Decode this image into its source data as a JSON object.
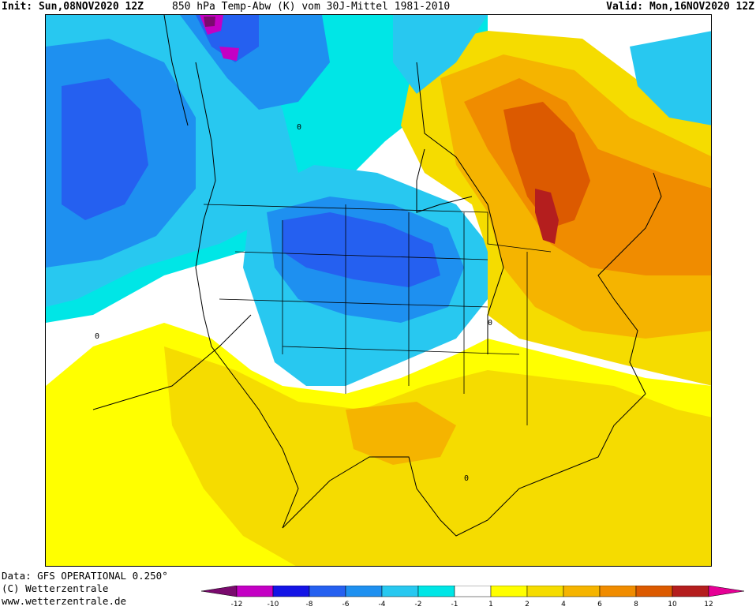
{
  "header": {
    "init": "Init: Sun,08NOV2020 12Z",
    "title": "850 hPa Temp-Abw (K) vom 30J-Mittel 1981-2010",
    "valid": "Valid: Mon,16NOV2020 12Z"
  },
  "map": {
    "region": "North America",
    "contour_label": "0",
    "colors": {
      "lt_-12": "#7a0a6e",
      "-12_-10": "#c400c4",
      "-10_-8": "#1414e6",
      "-8_-6": "#2560f0",
      "-6_-4": "#1e90f0",
      "-4_-2": "#28c8f0",
      "-2_-1": "#00e6e6",
      "-1_1": "#ffffff",
      "1_2": "#ffff00",
      "2_4": "#f5dc00",
      "4_6": "#f5b400",
      "6_8": "#f08c00",
      "8_10": "#dc5a00",
      "10_12": "#b41e1e",
      "gt_12": "#e60096"
    }
  },
  "colorbar": {
    "ticks": [
      "-12",
      "-10",
      "-8",
      "-6",
      "-4",
      "-2",
      "-1",
      "1",
      "2",
      "4",
      "6",
      "8",
      "10",
      "12"
    ],
    "colors": [
      "#7a0a6e",
      "#c400c4",
      "#1414e6",
      "#2560f0",
      "#1e90f0",
      "#28c8f0",
      "#00e6e6",
      "#ffffff",
      "#ffff00",
      "#f5dc00",
      "#f5b400",
      "#f08c00",
      "#dc5a00",
      "#b41e1e",
      "#e60096"
    ]
  },
  "footer": {
    "data": "Data: GFS OPERATIONAL 0.250°",
    "copyright": "(C) Wetterzentrale",
    "url": "www.wetterzentrale.de"
  }
}
